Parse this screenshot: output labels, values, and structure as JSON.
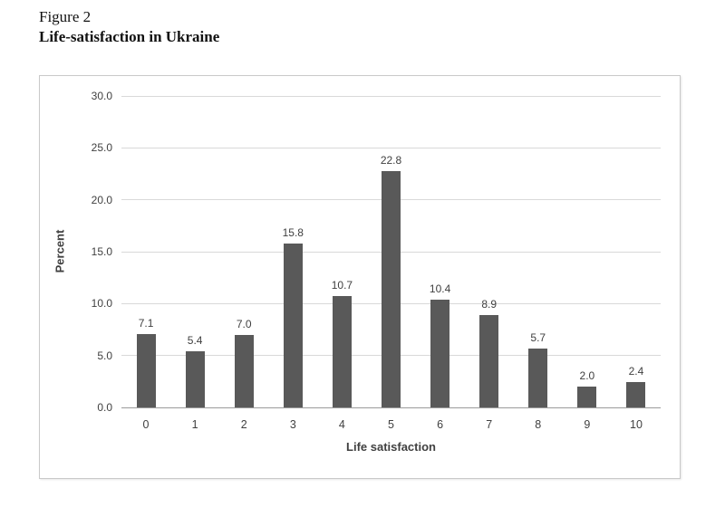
{
  "page": {
    "figure_label": "Figure 2",
    "figure_title": "Life-satisfaction in Ukraine"
  },
  "chart_data": {
    "type": "bar",
    "title": "",
    "categories": [
      "0",
      "1",
      "2",
      "3",
      "4",
      "5",
      "6",
      "7",
      "8",
      "9",
      "10"
    ],
    "values": [
      7.1,
      5.4,
      7.0,
      15.8,
      10.7,
      22.8,
      10.4,
      8.9,
      5.7,
      2.0,
      2.4
    ],
    "data_labels": [
      "7.1",
      "5.4",
      "7.0",
      "15.8",
      "10.7",
      "22.8",
      "10.4",
      "8.9",
      "5.7",
      "2.0",
      "2.4"
    ],
    "xlabel": "Life satisfaction",
    "ylabel": "Percent",
    "ylim": [
      0,
      30
    ],
    "ytick_step": 5,
    "ytick_labels": [
      "0.0",
      "5.0",
      "10.0",
      "15.0",
      "20.0",
      "25.0",
      "30.0"
    ],
    "grid": true,
    "legend": "none",
    "colors": {
      "bar": "#595959",
      "gridline": "#d9d9d9",
      "axis_line": "#9b9b9b",
      "tick_label": "#404040",
      "frame_border": "#c9c9c9"
    }
  }
}
